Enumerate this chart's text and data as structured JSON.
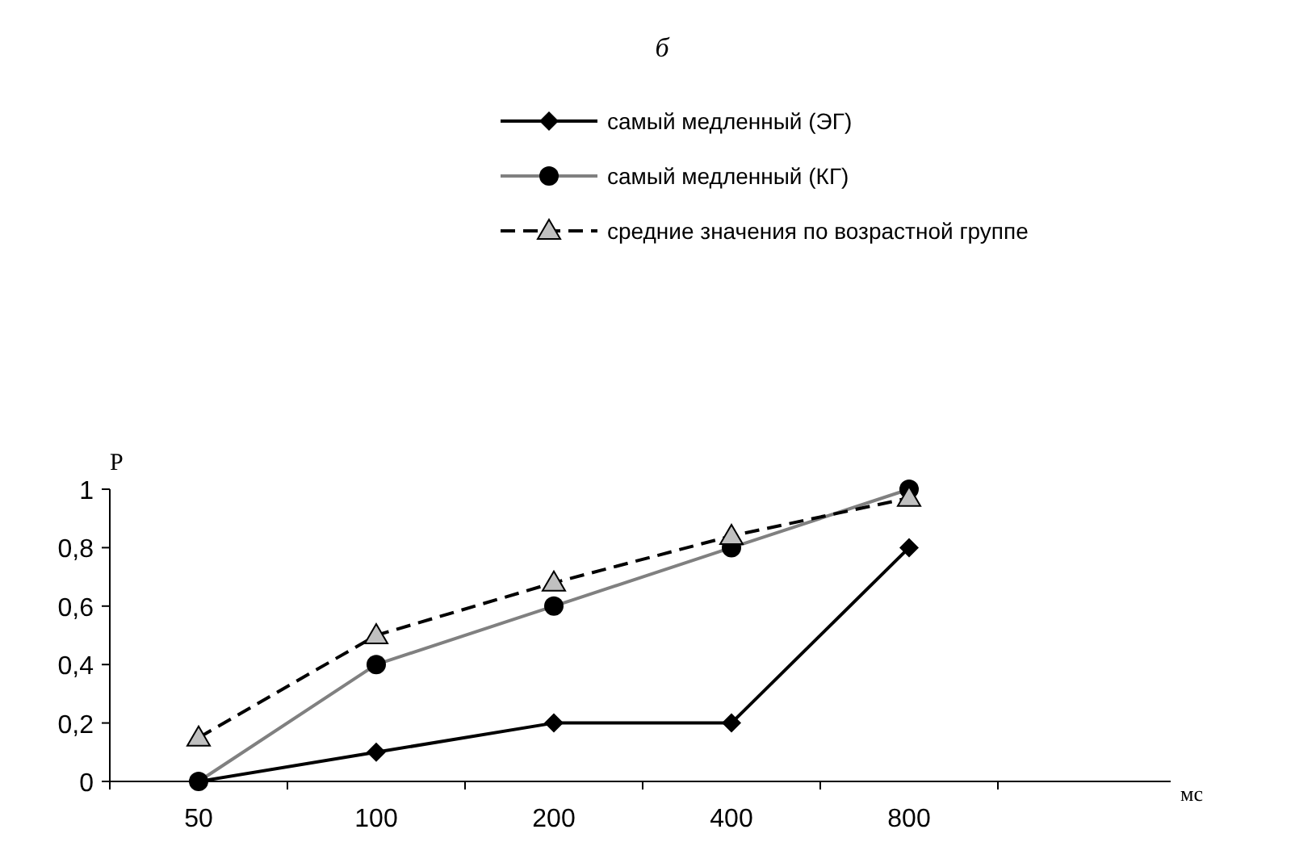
{
  "chart_data": {
    "type": "line",
    "title": "б",
    "annotations": [
      "мс"
    ],
    "ylabel": "P",
    "categories": [
      "50",
      "100",
      "200",
      "400",
      "800"
    ],
    "series": [
      {
        "name": "самый медленный (ЭГ)",
        "color": "#000000",
        "marker": "diamond",
        "line_style": "solid",
        "values": [
          0,
          0.1,
          0.2,
          0.2,
          0.8
        ]
      },
      {
        "name": "самый медленный (КГ)",
        "color": "#808080",
        "marker": "circle",
        "line_style": "solid",
        "values": [
          0,
          0.4,
          0.6,
          0.8,
          1.0
        ]
      },
      {
        "name": "средние значения по возрастной группе",
        "color": "#000000",
        "marker": "triangle",
        "line_style": "dashed",
        "values": [
          0.15,
          0.5,
          0.68,
          0.84,
          0.97
        ]
      }
    ],
    "ylim": [
      0,
      1
    ],
    "yticks": [
      0,
      {
        "value": 0.2,
        "label": "0,2"
      },
      {
        "value": 0.4,
        "label": "0,4"
      },
      {
        "value": 0.6,
        "label": "0,6"
      },
      {
        "value": 0.8,
        "label": "0,8"
      },
      1
    ],
    "grid": false,
    "legend": "top"
  }
}
